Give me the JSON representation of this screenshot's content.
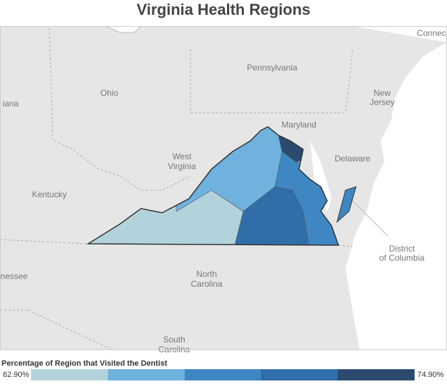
{
  "header": {
    "title": "Virginia Health Regions"
  },
  "map": {
    "labels": [
      {
        "lines": [
          "Pennsylvania"
        ]
      },
      {
        "lines": [
          "Ohio"
        ]
      },
      {
        "lines": [
          "West",
          "Virginia"
        ]
      },
      {
        "lines": [
          "Kentucky"
        ]
      },
      {
        "lines": [
          "Maryland"
        ]
      },
      {
        "lines": [
          "New",
          "Jersey"
        ]
      },
      {
        "lines": [
          "Delaware"
        ]
      },
      {
        "lines": [
          "District",
          "of Columbia"
        ]
      },
      {
        "lines": [
          "North",
          "Carolina"
        ]
      },
      {
        "lines": [
          "South",
          "Carolina"
        ]
      },
      {
        "lines": [
          "iana"
        ]
      },
      {
        "lines": [
          "nessee"
        ]
      },
      {
        "lines": [
          "Connec"
        ]
      }
    ]
  },
  "legend": {
    "title": "Percentage of Region that Visited the Dentist",
    "min": "62.90%",
    "max": "74.90%"
  }
}
